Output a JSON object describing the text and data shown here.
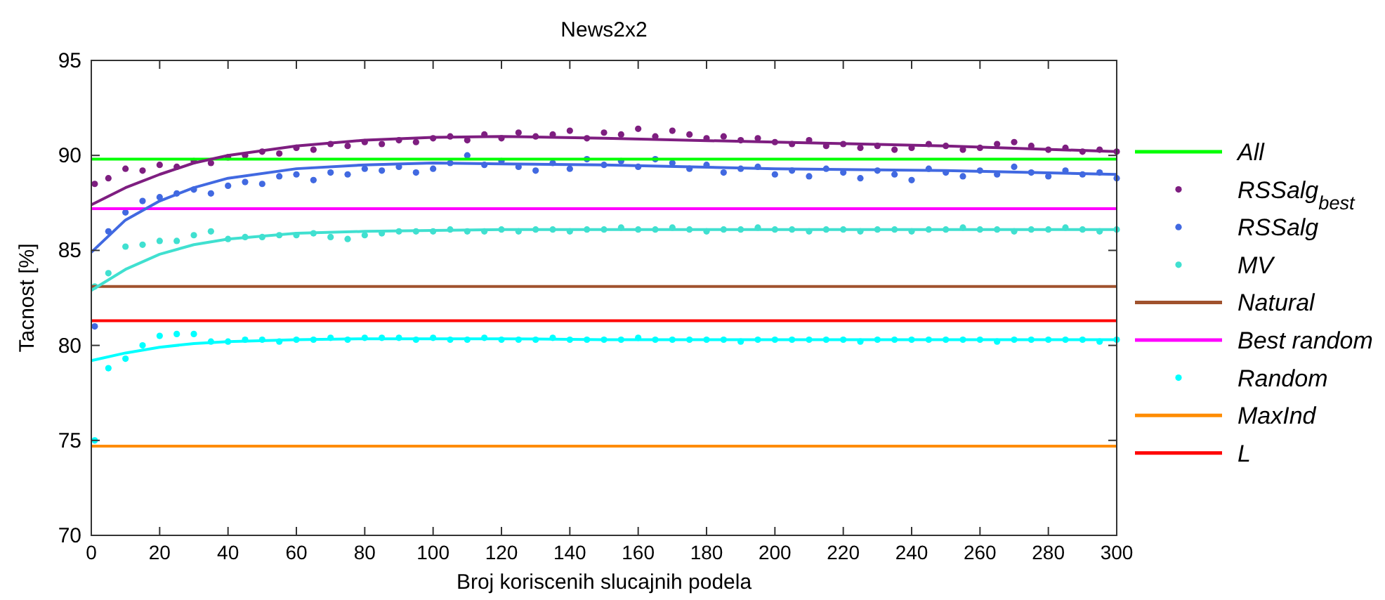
{
  "chart_data": {
    "type": "scatter",
    "title": "News2x2",
    "xlabel": "Broj koriscenih slucajnih podela",
    "ylabel": "Tacnost [%]",
    "x": [
      1,
      5,
      10,
      15,
      20,
      25,
      30,
      35,
      40,
      45,
      50,
      55,
      60,
      65,
      70,
      75,
      80,
      85,
      90,
      95,
      100,
      105,
      110,
      115,
      120,
      125,
      130,
      135,
      140,
      145,
      150,
      155,
      160,
      165,
      170,
      175,
      180,
      185,
      190,
      195,
      200,
      205,
      210,
      215,
      220,
      225,
      230,
      235,
      240,
      245,
      250,
      255,
      260,
      265,
      270,
      275,
      280,
      285,
      290,
      295,
      300
    ],
    "xlim": [
      0,
      300
    ],
    "xticks": [
      0,
      20,
      40,
      60,
      80,
      100,
      120,
      140,
      160,
      180,
      200,
      220,
      240,
      260,
      280,
      300
    ],
    "ylim": [
      70,
      95
    ],
    "yticks": [
      70,
      75,
      80,
      85,
      90,
      95
    ],
    "grid": false,
    "legend": "right",
    "series": [
      {
        "name": "All",
        "type": "line",
        "color": "#00ff00",
        "x": [
          0,
          300
        ],
        "values": [
          89.8,
          89.8
        ]
      },
      {
        "name": "RSSalg$_{best}$",
        "marker": "circle",
        "color": "#7e1e80",
        "values": [
          88.5,
          88.8,
          89.3,
          89.2,
          89.5,
          89.4,
          89.7,
          89.6,
          89.9,
          90.0,
          90.2,
          90.1,
          90.4,
          90.3,
          90.6,
          90.5,
          90.7,
          90.6,
          90.8,
          90.7,
          90.9,
          91.0,
          90.8,
          91.1,
          90.9,
          91.2,
          91.0,
          91.1,
          91.3,
          90.9,
          91.2,
          91.1,
          91.4,
          91.0,
          91.3,
          91.1,
          90.9,
          91.0,
          90.8,
          90.9,
          90.7,
          90.6,
          90.8,
          90.5,
          90.6,
          90.4,
          90.5,
          90.3,
          90.4,
          90.6,
          90.5,
          90.3,
          90.4,
          90.6,
          90.7,
          90.5,
          90.3,
          90.4,
          90.2,
          90.3,
          90.2
        ]
      },
      {
        "name": "RSSalg",
        "marker": "circle",
        "color": "#4169e1",
        "values": [
          81.0,
          86.0,
          87.0,
          87.6,
          87.8,
          88.0,
          88.2,
          88.0,
          88.4,
          88.6,
          88.5,
          88.9,
          89.0,
          88.7,
          89.1,
          89.0,
          89.3,
          89.2,
          89.4,
          89.1,
          89.3,
          89.6,
          90.0,
          89.5,
          89.7,
          89.4,
          89.2,
          89.6,
          89.3,
          89.8,
          89.5,
          89.7,
          89.4,
          89.8,
          89.6,
          89.3,
          89.5,
          89.1,
          89.3,
          89.4,
          89.0,
          89.2,
          88.9,
          89.3,
          89.1,
          88.8,
          89.2,
          89.0,
          88.7,
          89.3,
          89.1,
          88.9,
          89.2,
          89.0,
          89.4,
          89.1,
          88.9,
          89.2,
          89.0,
          89.1,
          88.8
        ]
      },
      {
        "name": "MV",
        "marker": "circle",
        "color": "#40e0d0",
        "values": [
          83.1,
          83.8,
          85.2,
          85.3,
          85.5,
          85.5,
          85.8,
          86.0,
          85.6,
          85.7,
          85.7,
          85.8,
          85.8,
          85.9,
          85.7,
          85.6,
          85.8,
          85.9,
          86.0,
          86.0,
          86.0,
          86.1,
          86.0,
          86.0,
          86.1,
          86.0,
          86.1,
          86.1,
          86.0,
          86.1,
          86.1,
          86.2,
          86.1,
          86.1,
          86.2,
          86.1,
          86.0,
          86.1,
          86.1,
          86.2,
          86.1,
          86.1,
          86.0,
          86.1,
          86.1,
          86.0,
          86.1,
          86.1,
          86.0,
          86.1,
          86.1,
          86.2,
          86.1,
          86.1,
          86.0,
          86.1,
          86.1,
          86.2,
          86.1,
          86.0,
          86.1
        ]
      },
      {
        "name": "Natural",
        "type": "line",
        "color": "#a0522d",
        "x": [
          0,
          300
        ],
        "values": [
          83.1,
          83.1
        ]
      },
      {
        "name": "Best random",
        "type": "line",
        "color": "#ff00ff",
        "x": [
          0,
          300
        ],
        "values": [
          87.2,
          87.2
        ]
      },
      {
        "name": "Random",
        "marker": "circle",
        "color": "#00ffff",
        "values": [
          75.0,
          78.8,
          79.3,
          80.0,
          80.5,
          80.6,
          80.6,
          80.2,
          80.2,
          80.3,
          80.3,
          80.2,
          80.3,
          80.3,
          80.4,
          80.3,
          80.4,
          80.4,
          80.4,
          80.3,
          80.4,
          80.3,
          80.3,
          80.4,
          80.3,
          80.3,
          80.3,
          80.4,
          80.3,
          80.3,
          80.3,
          80.3,
          80.4,
          80.3,
          80.3,
          80.3,
          80.3,
          80.3,
          80.2,
          80.3,
          80.3,
          80.3,
          80.3,
          80.3,
          80.3,
          80.2,
          80.3,
          80.3,
          80.3,
          80.3,
          80.3,
          80.3,
          80.3,
          80.2,
          80.3,
          80.3,
          80.3,
          80.3,
          80.3,
          80.2,
          80.3
        ]
      },
      {
        "name": "MaxInd",
        "type": "line",
        "color": "#ff8c00",
        "x": [
          0,
          300
        ],
        "values": [
          74.7,
          74.7
        ]
      },
      {
        "name": "L",
        "type": "line",
        "color": "#ff0000",
        "x": [
          0,
          300
        ],
        "values": [
          81.3,
          81.3
        ]
      },
      {
        "type": "line",
        "color": "#7e1e80",
        "x": [
          0,
          10,
          20,
          30,
          40,
          60,
          80,
          100,
          120,
          150,
          200,
          250,
          300
        ],
        "values": [
          87.4,
          88.3,
          89.0,
          89.6,
          90.0,
          90.5,
          90.8,
          90.95,
          91.0,
          90.9,
          90.7,
          90.5,
          90.2
        ]
      },
      {
        "type": "line",
        "color": "#4169e1",
        "x": [
          0,
          10,
          20,
          30,
          40,
          60,
          80,
          100,
          120,
          150,
          200,
          250,
          300
        ],
        "values": [
          84.9,
          86.6,
          87.6,
          88.3,
          88.8,
          89.3,
          89.5,
          89.6,
          89.55,
          89.5,
          89.3,
          89.2,
          89.0
        ]
      },
      {
        "type": "line",
        "color": "#40e0d0",
        "x": [
          0,
          10,
          20,
          30,
          40,
          60,
          80,
          100,
          120,
          150,
          200,
          250,
          300
        ],
        "values": [
          82.9,
          84.0,
          84.8,
          85.3,
          85.6,
          85.9,
          86.0,
          86.05,
          86.1,
          86.1,
          86.1,
          86.1,
          86.1
        ]
      },
      {
        "type": "line",
        "color": "#00ffff",
        "x": [
          0,
          10,
          20,
          30,
          40,
          60,
          80,
          100,
          120,
          150,
          200,
          250,
          300
        ],
        "values": [
          79.2,
          79.6,
          79.9,
          80.1,
          80.2,
          80.3,
          80.35,
          80.35,
          80.35,
          80.3,
          80.3,
          80.3,
          80.3
        ]
      }
    ]
  }
}
